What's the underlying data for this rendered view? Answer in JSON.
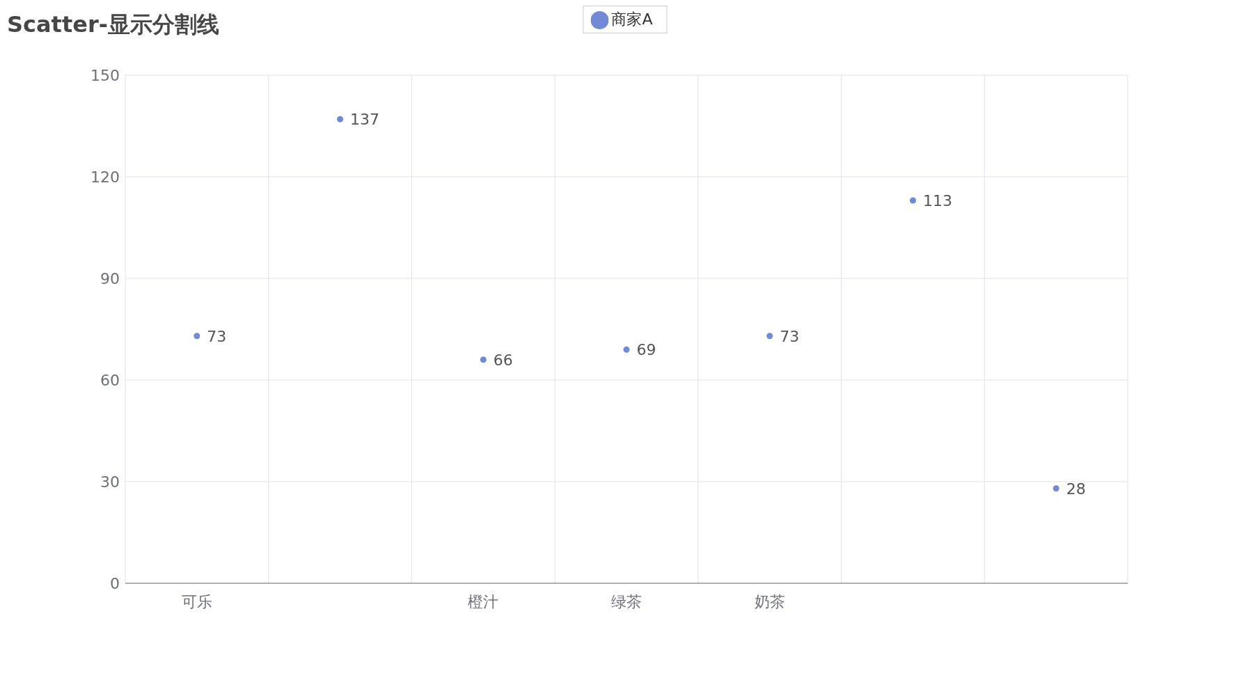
{
  "chart_data": {
    "type": "scatter",
    "title": "Scatter-显示分割线",
    "categories": [
      "可乐",
      null,
      "橙汁",
      "绿茶",
      "奶茶",
      null,
      null
    ],
    "series": [
      {
        "name": "商家A",
        "color": "#7289d5",
        "values": [
          73,
          137,
          66,
          69,
          73,
          113,
          28
        ]
      }
    ],
    "ylim": [
      0,
      150
    ],
    "yticks": [
      0,
      30,
      60,
      90,
      120,
      150
    ],
    "grid": true,
    "legend": "top",
    "marker": "circle",
    "data_labels": true
  }
}
